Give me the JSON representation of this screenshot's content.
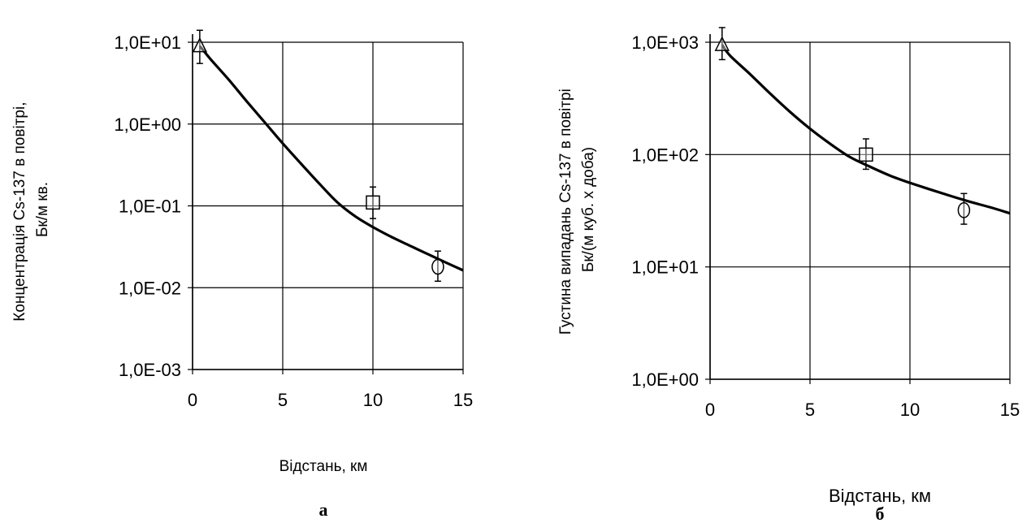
{
  "chart_data": [
    {
      "type": "scatter",
      "panel_label": "а",
      "ylabel": "Концентрація Cs-137 в повітрі, Бк/м кв.",
      "xlabel": "Відстань, км",
      "xlim": [
        0,
        15
      ],
      "x_ticks": [
        0,
        5,
        10,
        15
      ],
      "x_tick_labels": [
        "0",
        "5",
        "10",
        "15"
      ],
      "y_scale": "log",
      "ylim": [
        0.001,
        10
      ],
      "y_ticks": [
        10,
        1,
        0.1,
        0.01,
        0.001
      ],
      "y_tick_labels": [
        "1,0E+01",
        "1,0E+00",
        "1,0E-01",
        "1,0E-02",
        "1,0E-03"
      ],
      "grid": true,
      "legend": "none",
      "curve": {
        "x": [
          0.4,
          1,
          2,
          3,
          4,
          5,
          6,
          7,
          8,
          9,
          10,
          11,
          12,
          13,
          14,
          15
        ],
        "y": [
          9,
          6.2,
          3.5,
          1.9,
          1.05,
          0.58,
          0.33,
          0.19,
          0.112,
          0.075,
          0.055,
          0.042,
          0.033,
          0.026,
          0.0205,
          0.0163
        ]
      },
      "points": [
        {
          "marker": "triangle",
          "x": 0.4,
          "y": 9,
          "err_low": 5.5,
          "err_high": 14
        },
        {
          "marker": "square",
          "x": 10,
          "y": 0.11,
          "err_low": 0.07,
          "err_high": 0.17
        },
        {
          "marker": "circle",
          "x": 13.6,
          "y": 0.018,
          "err_low": 0.012,
          "err_high": 0.028
        }
      ]
    },
    {
      "type": "scatter",
      "panel_label": "б",
      "ylabel": "Густина випадань Cs-137 в повітрі Бк/(м куб. х доба)",
      "xlabel": "Відстань, км",
      "xlim": [
        0,
        15
      ],
      "x_ticks": [
        0,
        5,
        10,
        15
      ],
      "x_tick_labels": [
        "0",
        "5",
        "10",
        "15"
      ],
      "y_scale": "log",
      "ylim": [
        1,
        1000
      ],
      "y_ticks": [
        1000,
        100,
        10,
        1
      ],
      "y_tick_labels": [
        "1,0E+03",
        "1,0E+02",
        "1,0E+01",
        "1,0E+00"
      ],
      "grid": true,
      "legend": "none",
      "curve": {
        "x": [
          0.6,
          1,
          2,
          3,
          4,
          5,
          6,
          7,
          8,
          9,
          10,
          11,
          12,
          13,
          14,
          15
        ],
        "y": [
          950,
          760,
          520,
          350,
          240,
          170,
          125,
          95,
          78,
          65,
          56,
          49,
          43,
          38,
          34,
          30
        ]
      },
      "points": [
        {
          "marker": "triangle",
          "x": 0.6,
          "y": 950,
          "err_low": 700,
          "err_high": 1350
        },
        {
          "marker": "square",
          "x": 7.8,
          "y": 100,
          "err_low": 74,
          "err_high": 138
        },
        {
          "marker": "circle",
          "x": 12.7,
          "y": 32,
          "err_low": 24,
          "err_high": 45
        }
      ]
    }
  ]
}
